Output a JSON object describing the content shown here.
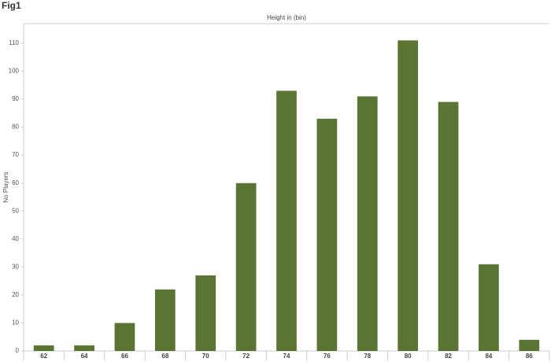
{
  "chart_data": {
    "type": "bar",
    "title": "Fig1",
    "subtitle": "Height in (bin)",
    "y_label": "No Players",
    "categories": [
      "62",
      "64",
      "66",
      "68",
      "70",
      "72",
      "74",
      "76",
      "78",
      "80",
      "82",
      "84",
      "86"
    ],
    "values": [
      2,
      2,
      10,
      22,
      27,
      60,
      93,
      83,
      91,
      111,
      89,
      31,
      4
    ],
    "color": "#5a7434",
    "ylim": [
      0,
      117
    ],
    "yticks": [
      0,
      10,
      20,
      30,
      40,
      50,
      60,
      70,
      80,
      90,
      100,
      110
    ],
    "grid": false
  }
}
